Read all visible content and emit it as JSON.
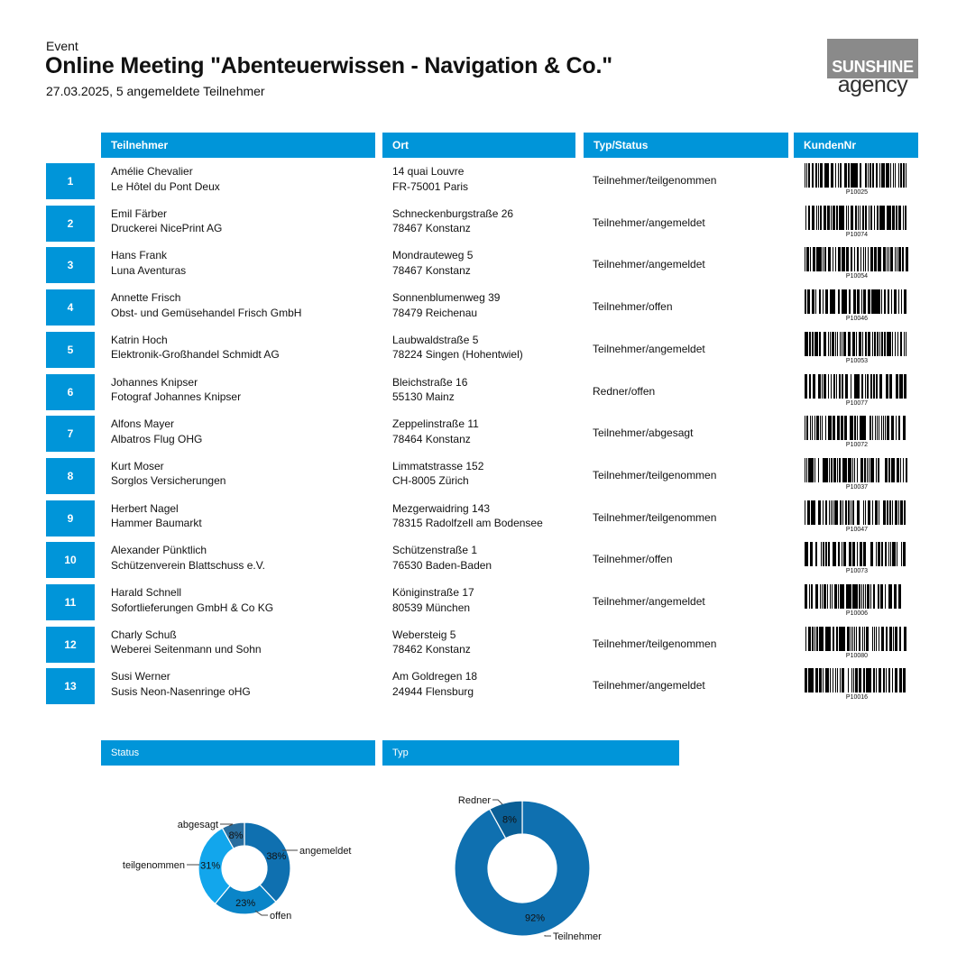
{
  "header": {
    "kicker": "Event",
    "title": "Online Meeting \"Abenteuerwissen - Navigation & Co.\"",
    "subtitle": "27.03.2025, 5 angemeldete Teilnehmer"
  },
  "logo": {
    "line1": "SUNSHINE",
    "line2": "agency"
  },
  "colors": {
    "accent": "#0095d9",
    "dark_blue": "#0f70b0",
    "light_blue": "#12a6ec",
    "logo_gray": "#8a8a8a"
  },
  "table": {
    "columns": [
      "Teilnehmer",
      "Ort",
      "Typ/Status",
      "KundenNr"
    ],
    "rows": [
      {
        "nr": "1",
        "name": "Amélie Chevalier",
        "company": "Le Hôtel du Pont Deux",
        "street": "14 quai Louvre",
        "city": "FR-75001 Paris",
        "status": "Teilnehmer/teilgenommen",
        "kundennr": "P10025"
      },
      {
        "nr": "2",
        "name": "Emil Färber",
        "company": "Druckerei NicePrint AG",
        "street": "Schneckenburgstraße 26",
        "city": "78467 Konstanz",
        "status": "Teilnehmer/angemeldet",
        "kundennr": "P10074"
      },
      {
        "nr": "3",
        "name": "Hans Frank",
        "company": "Luna Aventuras",
        "street": "Mondrauteweg 5",
        "city": "78467 Konstanz",
        "status": "Teilnehmer/angemeldet",
        "kundennr": "P10054"
      },
      {
        "nr": "4",
        "name": "Annette Frisch",
        "company": "Obst- und Gemüsehandel Frisch GmbH",
        "street": "Sonnenblumenweg 39",
        "city": "78479 Reichenau",
        "status": "Teilnehmer/offen",
        "kundennr": "P10046"
      },
      {
        "nr": "5",
        "name": "Katrin Hoch",
        "company": "Elektronik-Großhandel Schmidt AG",
        "street": "Laubwaldstraße 5",
        "city": "78224 Singen (Hohentwiel)",
        "status": "Teilnehmer/angemeldet",
        "kundennr": "P10053"
      },
      {
        "nr": "6",
        "name": "Johannes Knipser",
        "company": "Fotograf Johannes Knipser",
        "street": "Bleichstraße 16",
        "city": "55130 Mainz",
        "status": "Redner/offen",
        "kundennr": "P10077"
      },
      {
        "nr": "7",
        "name": "Alfons Mayer",
        "company": "Albatros Flug OHG",
        "street": "Zeppelinstraße 11",
        "city": "78464 Konstanz",
        "status": "Teilnehmer/abgesagt",
        "kundennr": "P10072"
      },
      {
        "nr": "8",
        "name": "Kurt Moser",
        "company": "Sorglos Versicherungen",
        "street": "Limmatstrasse 152",
        "city": "CH-8005 Zürich",
        "status": "Teilnehmer/teilgenommen",
        "kundennr": "P10037"
      },
      {
        "nr": "9",
        "name": "Herbert Nagel",
        "company": "Hammer Baumarkt",
        "street": "Mezgerwaidring 143",
        "city": "78315 Radolfzell am Bodensee",
        "status": "Teilnehmer/teilgenommen",
        "kundennr": "P10047"
      },
      {
        "nr": "10",
        "name": "Alexander Pünktlich",
        "company": "Schützenverein Blattschuss e.V.",
        "street": "Schützenstraße 1",
        "city": "76530 Baden-Baden",
        "status": "Teilnehmer/offen",
        "kundennr": "P10073"
      },
      {
        "nr": "11",
        "name": "Harald Schnell",
        "company": "Sofortlieferungen GmbH & Co KG",
        "street": "Königinstraße 17",
        "city": "80539 München",
        "status": "Teilnehmer/angemeldet",
        "kundennr": "P10006"
      },
      {
        "nr": "12",
        "name": "Charly Schuß",
        "company": "Weberei Seitenmann und Sohn",
        "street": "Webersteig 5",
        "city": "78462 Konstanz",
        "status": "Teilnehmer/teilgenommen",
        "kundennr": "P10080"
      },
      {
        "nr": "13",
        "name": "Susi Werner",
        "company": "Susis Neon-Nasenringe oHG",
        "street": "Am Goldregen 18",
        "city": "24944 Flensburg",
        "status": "Teilnehmer/angemeldet",
        "kundennr": "P10016"
      }
    ]
  },
  "chart_headers": {
    "status": "Status",
    "typ": "Typ"
  },
  "chart_data": [
    {
      "type": "pie",
      "style": "donut",
      "categories": [
        "angemeldet",
        "offen",
        "teilgenommen",
        "abgesagt"
      ],
      "values": [
        38,
        23,
        31,
        8
      ],
      "value_labels": [
        "38%",
        "23%",
        "31%",
        "8%"
      ],
      "colors": [
        "#0f70b0",
        "#0a85c8",
        "#12a6ec",
        "#2a6e9e"
      ]
    },
    {
      "type": "pie",
      "style": "donut",
      "categories": [
        "Teilnehmer",
        "Redner"
      ],
      "values": [
        92,
        8
      ],
      "value_labels": [
        "92%",
        "8%"
      ],
      "colors": [
        "#0f70b0",
        "#0a5f96"
      ]
    }
  ]
}
